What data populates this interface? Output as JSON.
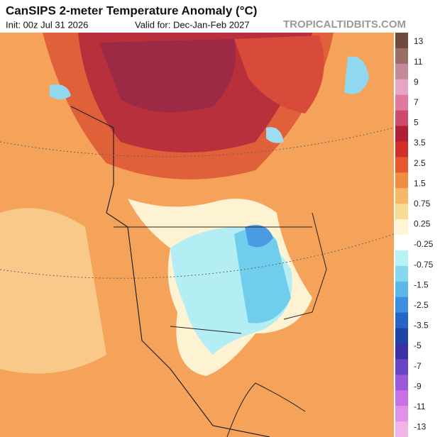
{
  "header": {
    "title": "CanSIPS 2-meter Temperature Anomaly (°C)",
    "init": "Init: 00z Jul 31 2026",
    "valid": "Valid for: Dec-Jan-Feb 2027",
    "credit": "TROPICALTIDBITS.COM"
  },
  "colorbar": {
    "labels": [
      "13",
      "11",
      "9",
      "7",
      "5",
      "3.5",
      "2.5",
      "1.5",
      "0.75",
      "0.25",
      "-0.25",
      "-0.75",
      "-1.5",
      "-2.5",
      "-3.5",
      "-5",
      "-7",
      "-9",
      "-11",
      "-13"
    ],
    "colors": [
      "#6e4b3c",
      "#9a6e64",
      "#c48a9a",
      "#e7a4c4",
      "#e2789e",
      "#cf4a6a",
      "#b21e36",
      "#d32f2a",
      "#e9582c",
      "#f28c3e",
      "#f7b865",
      "#fadb94",
      "#fdf5d4",
      "#ffffff",
      "#b8f1f6",
      "#84d9ee",
      "#5db8ea",
      "#3b8ee0",
      "#2565c8",
      "#1c46a6",
      "#3b30a8",
      "#6a44c8",
      "#9a58da",
      "#c870e4",
      "#e390e8",
      "#f0b4e8"
    ]
  }
}
